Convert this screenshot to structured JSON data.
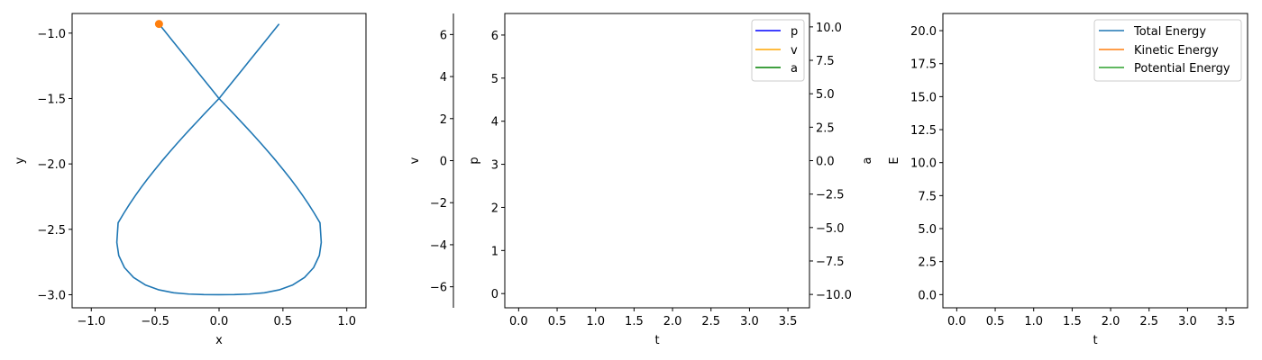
{
  "chart_data": [
    {
      "type": "line",
      "title": "",
      "xlabel": "x",
      "ylabel": "y",
      "xlim": [
        -1.15,
        1.15
      ],
      "ylim": [
        -3.1,
        -0.85
      ],
      "xticks": [
        -1.0,
        -0.5,
        0.0,
        0.5,
        1.0
      ],
      "xtick_labels": [
        "−1.0",
        "−0.5",
        "0.0",
        "0.5",
        "1.0"
      ],
      "yticks": [
        -3.0,
        -2.5,
        -2.0,
        -1.5,
        -1.0
      ],
      "ytick_labels": [
        "−3.0",
        "−2.5",
        "−2.0",
        "−1.5",
        "−1.0"
      ],
      "grid": false,
      "series": [
        {
          "color": "#1f77b4",
          "x": [
            0.47,
            0.423,
            0.376,
            0.329,
            0.282,
            0.235,
            0.188,
            0.141,
            0.094,
            0.047,
            0.0,
            -0.056,
            -0.112,
            -0.168,
            -0.224,
            -0.28,
            -0.336,
            -0.392,
            -0.448,
            -0.504,
            -0.56,
            -0.606,
            -0.652,
            -0.698,
            -0.744,
            -0.79,
            -0.8,
            -0.785,
            -0.74,
            -0.669,
            -0.577,
            -0.47,
            -0.355,
            -0.237,
            -0.119,
            0.0,
            0.119,
            0.237,
            0.355,
            0.47,
            0.577,
            0.669,
            0.74,
            0.785,
            0.8,
            0.79,
            0.744,
            0.698,
            0.652,
            0.606,
            0.56,
            0.504,
            0.448,
            0.392,
            0.336,
            0.28,
            0.224,
            0.168,
            0.112,
            0.056,
            0.0,
            -0.047,
            -0.094,
            -0.141,
            -0.188,
            -0.235,
            -0.282,
            -0.329,
            -0.376,
            -0.423,
            -0.47
          ],
          "y": [
            -0.93,
            -0.987,
            -1.044,
            -1.101,
            -1.158,
            -1.215,
            -1.272,
            -1.329,
            -1.386,
            -1.443,
            -1.5,
            -1.557,
            -1.614,
            -1.673,
            -1.731,
            -1.791,
            -1.852,
            -1.915,
            -1.979,
            -2.046,
            -2.115,
            -2.175,
            -2.238,
            -2.304,
            -2.375,
            -2.45,
            -2.6,
            -2.7,
            -2.793,
            -2.868,
            -2.925,
            -2.963,
            -2.985,
            -2.995,
            -2.999,
            -3.0,
            -2.999,
            -2.995,
            -2.985,
            -2.963,
            -2.925,
            -2.868,
            -2.793,
            -2.7,
            -2.6,
            -2.45,
            -2.375,
            -2.304,
            -2.238,
            -2.175,
            -2.115,
            -2.046,
            -1.979,
            -1.915,
            -1.852,
            -1.791,
            -1.731,
            -1.673,
            -1.614,
            -1.557,
            -1.5,
            -1.443,
            -1.386,
            -1.329,
            -1.272,
            -1.215,
            -1.158,
            -1.101,
            -1.044,
            -0.987,
            -0.93
          ]
        }
      ],
      "markers": [
        {
          "x": -0.47,
          "y": -0.93,
          "color": "#ff7f0e"
        }
      ]
    },
    {
      "type": "line",
      "title": "",
      "xlabel": "t",
      "xlim": [
        -0.18,
        3.78
      ],
      "xticks": [
        0.0,
        0.5,
        1.0,
        1.5,
        2.0,
        2.5,
        3.0,
        3.5
      ],
      "xtick_labels": [
        "0.0",
        "0.5",
        "1.0",
        "1.5",
        "2.0",
        "2.5",
        "3.0",
        "3.5"
      ],
      "grid": false,
      "axes": {
        "p": {
          "label": "p",
          "color": "#0000ff",
          "ylim": [
            -0.33,
            6.5
          ],
          "yticks": [
            0,
            1,
            2,
            3,
            4,
            5,
            6
          ],
          "ytick_labels": [
            "0",
            "1",
            "2",
            "3",
            "4",
            "5",
            "6"
          ]
        },
        "v": {
          "label": "v",
          "color": "#ffa500",
          "ylim": [
            -7.0,
            7.0
          ],
          "yticks": [
            -6,
            -4,
            -2,
            0,
            2,
            4,
            6
          ],
          "ytick_labels": [
            "−6",
            "−4",
            "−2",
            "0",
            "2",
            "4",
            "6"
          ]
        },
        "a": {
          "label": "a",
          "color": "#008000",
          "ylim": [
            -11.0,
            11.0
          ],
          "yticks": [
            -10.0,
            -7.5,
            -5.0,
            -2.5,
            0.0,
            2.5,
            5.0,
            7.5,
            10.0
          ],
          "ytick_labels": [
            "−10.0",
            "−7.5",
            "−5.0",
            "−2.5",
            "0.0",
            "2.5",
            "5.0",
            "7.5",
            "10.0"
          ]
        }
      },
      "legend": {
        "position": "top-right",
        "entries": [
          {
            "label": "p",
            "color": "#0000ff"
          },
          {
            "label": "v",
            "color": "#ffa500"
          },
          {
            "label": "a",
            "color": "#008000"
          }
        ]
      },
      "series": []
    },
    {
      "type": "line",
      "title": "",
      "xlabel": "t",
      "ylabel": "E",
      "xlim": [
        -0.18,
        3.78
      ],
      "ylim": [
        -1.0,
        21.3
      ],
      "xticks": [
        0.0,
        0.5,
        1.0,
        1.5,
        2.0,
        2.5,
        3.0,
        3.5
      ],
      "xtick_labels": [
        "0.0",
        "0.5",
        "1.0",
        "1.5",
        "2.0",
        "2.5",
        "3.0",
        "3.5"
      ],
      "yticks": [
        0.0,
        2.5,
        5.0,
        7.5,
        10.0,
        12.5,
        15.0,
        17.5,
        20.0
      ],
      "ytick_labels": [
        "0.0",
        "2.5",
        "5.0",
        "7.5",
        "10.0",
        "12.5",
        "15.0",
        "17.5",
        "20.0"
      ],
      "grid": false,
      "legend": {
        "position": "top-right",
        "entries": [
          {
            "label": "Total Energy",
            "color": "#1f77b4"
          },
          {
            "label": "Kinetic Energy",
            "color": "#ff7f0e"
          },
          {
            "label": "Potential Energy",
            "color": "#2ca02c"
          }
        ]
      },
      "series": []
    }
  ]
}
